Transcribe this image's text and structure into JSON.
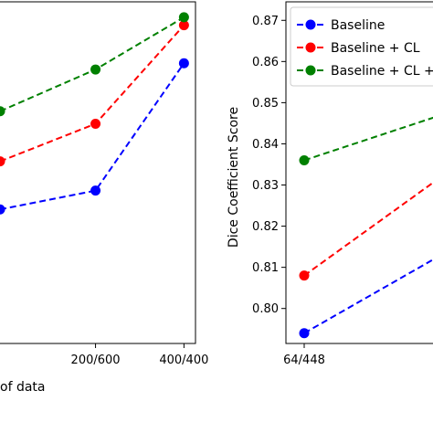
{
  "chart_data": [
    {
      "type": "line",
      "xlabel": "of data",
      "ylabel": "",
      "categories": [
        "200/600",
        "400/400"
      ],
      "x": [
        -0.08,
        1,
        2
      ],
      "series": [
        {
          "values": [
            0.8245,
            0.829,
            0.8595
          ],
          "color": "#0000ff"
        },
        {
          "values": [
            0.836,
            0.845,
            0.8686
          ],
          "color": "#ff0000"
        },
        {
          "values": [
            0.848,
            0.858,
            0.8705
          ],
          "color": "#008000"
        }
      ],
      "xlim": [
        -0.08,
        2.12
      ],
      "ylim": [
        0.7924,
        0.8742
      ]
    },
    {
      "type": "line",
      "xlabel": "",
      "ylabel": "Dice Coefficient Score",
      "categories": [
        "64/448"
      ],
      "x": [
        0,
        0.9
      ],
      "yticks": [
        "0.80",
        "0.81",
        "0.82",
        "0.83",
        "0.84",
        "0.85",
        "0.86",
        "0.87"
      ],
      "ytick_values": [
        0.8,
        0.81,
        0.82,
        0.83,
        0.84,
        0.85,
        0.86,
        0.87
      ],
      "series": [
        {
          "name": "Baseline",
          "values": [
            0.794,
            0.813
          ],
          "color": "#0000ff"
        },
        {
          "name": "Baseline + CL",
          "values": [
            0.808,
            0.832
          ],
          "color": "#ff0000"
        },
        {
          "name": "Baseline + CL +",
          "values": [
            0.836,
            0.847
          ],
          "color": "#008000"
        }
      ],
      "xlim": [
        -0.12,
        0.9
      ],
      "ylim": [
        0.7915,
        0.8745
      ],
      "legend": "top-left"
    }
  ]
}
